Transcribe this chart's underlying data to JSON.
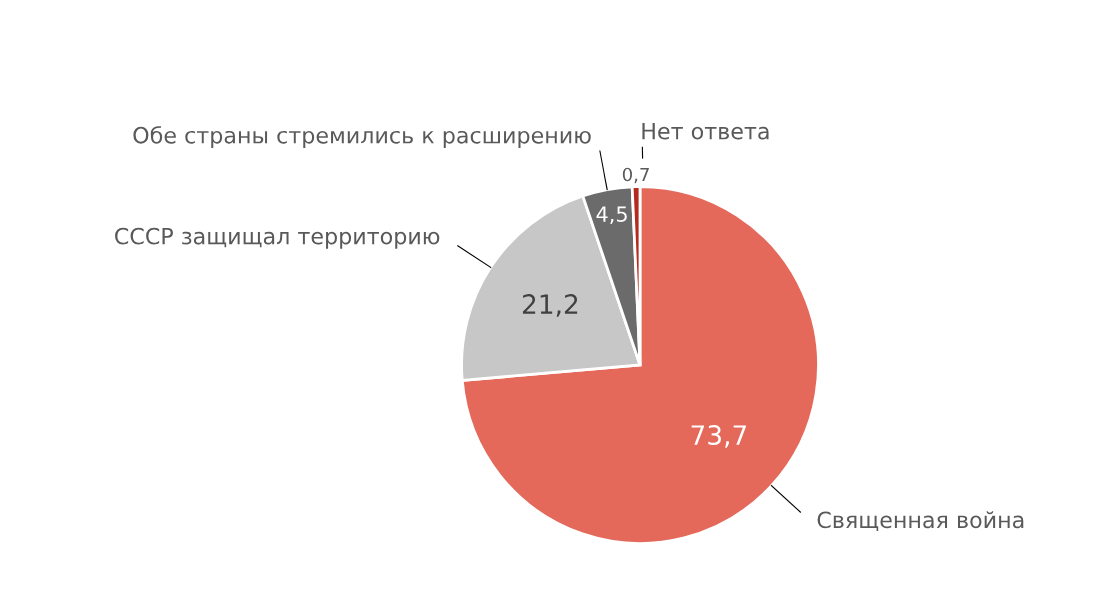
{
  "chart_data": {
    "type": "pie",
    "categories": [
      "Священная война",
      "СССР защищал территорию",
      "Обе страны стремились к расширению",
      "Нет ответа"
    ],
    "values": [
      73.7,
      21.2,
      4.5,
      0.7
    ],
    "value_labels": [
      "73,7",
      "21,2",
      "4,5",
      "0,7"
    ],
    "colors": [
      "#e4695a",
      "#c6c7c6",
      "#6b6b6b",
      "#b52a1f"
    ]
  }
}
